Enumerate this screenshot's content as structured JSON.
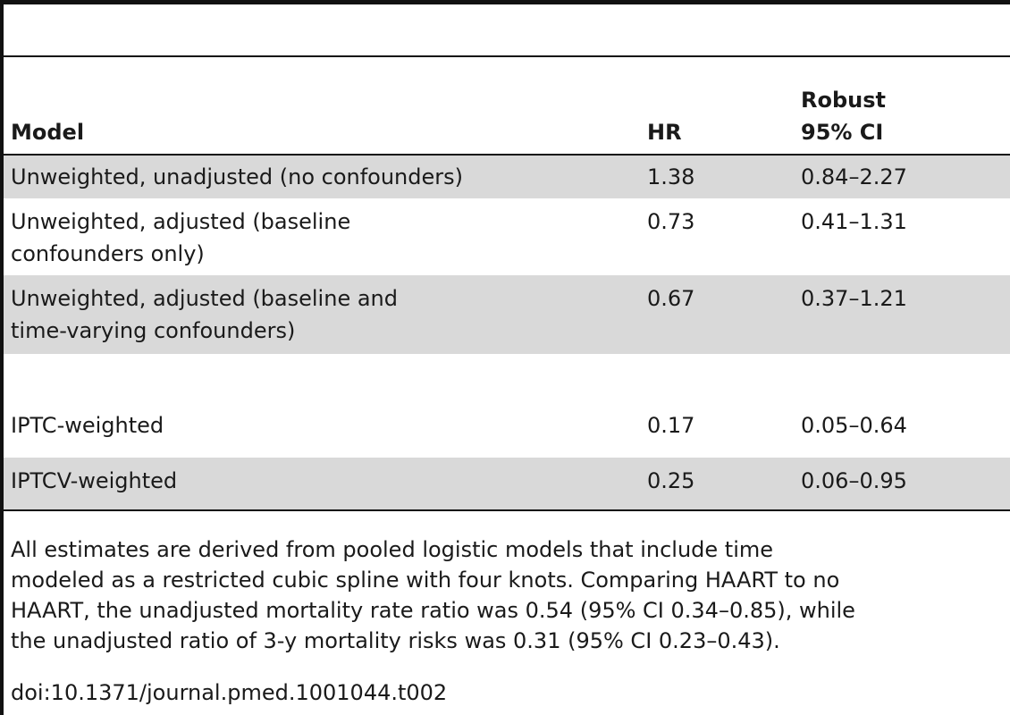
{
  "table": {
    "headers": {
      "model": "Model",
      "hr": "HR",
      "ci_line1": "Robust",
      "ci_line2": "95% CI"
    },
    "rows": [
      {
        "model_line1": "Unweighted, unadjusted (no confounders)",
        "model_line2": "",
        "hr": "1.38",
        "ci": "0.84–2.27",
        "shaded": true
      },
      {
        "model_line1": "Unweighted, adjusted (baseline",
        "model_line2": "confounders only)",
        "hr": "0.73",
        "ci": "0.41–1.31",
        "shaded": false
      },
      {
        "model_line1": "Unweighted, adjusted (baseline and",
        "model_line2": "time-varying confounders)",
        "hr": "0.67",
        "ci": "0.37–1.21",
        "shaded": true
      },
      {
        "model_line1": "IPTC-weighted",
        "model_line2": "",
        "hr": "0.17",
        "ci": "0.05–0.64",
        "shaded": false
      },
      {
        "model_line1": "IPTCV-weighted",
        "model_line2": "",
        "hr": "0.25",
        "ci": "0.06–0.95",
        "shaded": true
      }
    ]
  },
  "footnote": {
    "lines": [
      "All estimates are derived from pooled logistic models that include time",
      "modeled as a restricted cubic spline with four knots. Comparing HAART to no",
      "HAART, the unadjusted mortality rate ratio was 0.54 (95% CI 0.34–0.85), while",
      "the unadjusted ratio of 3-y mortality risks was 0.31 (95% CI 0.23–0.43)."
    ],
    "doi": "doi:10.1371/journal.pmed.1001044.t002"
  },
  "colors": {
    "shaded_row": "#d9d9d9",
    "rule": "#111111"
  }
}
